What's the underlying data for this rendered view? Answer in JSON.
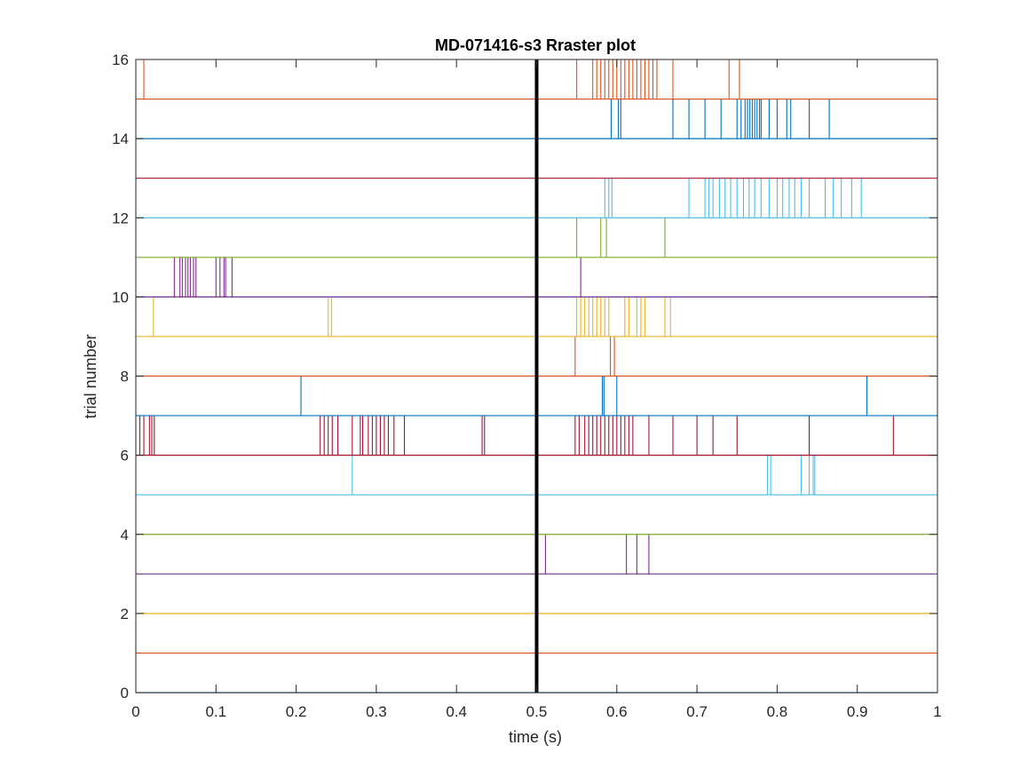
{
  "chart_data": {
    "type": "raster",
    "title": "MD-071416-s3 Rraster plot",
    "xlabel": "time (s)",
    "ylabel": "trial number",
    "xlim": [
      0,
      1
    ],
    "ylim": [
      0,
      16
    ],
    "xticks": [
      0,
      0.1,
      0.2,
      0.3,
      0.4,
      0.5,
      0.6,
      0.7,
      0.8,
      0.9,
      1
    ],
    "yticks": [
      0,
      2,
      4,
      6,
      8,
      10,
      12,
      14,
      16
    ],
    "xtick_labels": [
      "0",
      "0.1",
      "0.2",
      "0.3",
      "0.4",
      "0.5",
      "0.6",
      "0.7",
      "0.8",
      "0.9",
      "1"
    ],
    "ytick_labels": [
      "0",
      "2",
      "4",
      "6",
      "8",
      "10",
      "12",
      "14",
      "16"
    ],
    "grid": false,
    "event_marker": {
      "x": 0.5,
      "color": "#000000"
    },
    "trials": [
      {
        "trial": 1,
        "color": "#0072BD",
        "spikes": []
      },
      {
        "trial": 2,
        "color": "#D95319",
        "spikes": []
      },
      {
        "trial": 3,
        "color": "#EDB120",
        "spikes": []
      },
      {
        "trial": 4,
        "color": "#7E2F8E",
        "spikes": [
          0.511,
          0.612,
          0.625,
          0.64
        ]
      },
      {
        "trial": 5,
        "color": "#77AC30",
        "spikes": []
      },
      {
        "trial": 6,
        "color": "#4DBEEE",
        "spikes": [
          0.27,
          0.788,
          0.792,
          0.83,
          0.84,
          0.845,
          0.847
        ]
      },
      {
        "trial": 7,
        "color": "#A2142F",
        "spikes": [
          0.005,
          0.01,
          0.017,
          0.02,
          0.023,
          0.23,
          0.235,
          0.24,
          0.245,
          0.252,
          0.27,
          0.28,
          0.283,
          0.29,
          0.295,
          0.3,
          0.305,
          0.31,
          0.315,
          0.322,
          0.335,
          0.432,
          0.435,
          0.548,
          0.553,
          0.56,
          0.565,
          0.57,
          0.575,
          0.58,
          0.585,
          0.59,
          0.595,
          0.6,
          0.605,
          0.61,
          0.615,
          0.62,
          0.64,
          0.67,
          0.7,
          0.72,
          0.75,
          0.84,
          0.945
        ]
      },
      {
        "trial": 8,
        "color": "#0072BD",
        "spikes": [
          0.206,
          0.582,
          0.584,
          0.6,
          0.912
        ]
      },
      {
        "trial": 9,
        "color": "#D95319",
        "spikes": [
          0.548,
          0.592,
          0.597
        ]
      },
      {
        "trial": 10,
        "color": "#EDB120",
        "spikes": [
          0.022,
          0.24,
          0.244,
          0.55,
          0.555,
          0.56,
          0.565,
          0.57,
          0.575,
          0.58,
          0.585,
          0.59,
          0.61,
          0.615,
          0.625,
          0.63,
          0.635,
          0.66,
          0.667
        ]
      },
      {
        "trial": 11,
        "color": "#7E2F8E",
        "spikes": [
          0.048,
          0.055,
          0.058,
          0.062,
          0.065,
          0.068,
          0.072,
          0.075,
          0.1,
          0.105,
          0.11,
          0.112,
          0.12,
          0.555
        ]
      },
      {
        "trial": 12,
        "color": "#77AC30",
        "spikes": [
          0.55,
          0.58,
          0.587,
          0.66
        ]
      },
      {
        "trial": 13,
        "color": "#4DBEEE",
        "spikes": [
          0.585,
          0.59,
          0.594,
          0.69,
          0.71,
          0.715,
          0.72,
          0.728,
          0.735,
          0.742,
          0.75,
          0.758,
          0.765,
          0.772,
          0.78,
          0.79,
          0.8,
          0.807,
          0.815,
          0.822,
          0.83,
          0.84,
          0.86,
          0.87,
          0.88,
          0.893,
          0.905
        ]
      },
      {
        "trial": 14,
        "color": "#A2142F",
        "spikes": []
      },
      {
        "trial": 15,
        "color": "#0072BD",
        "spikes": [
          0.593,
          0.602,
          0.605,
          0.67,
          0.69,
          0.71,
          0.73,
          0.75,
          0.755,
          0.76,
          0.763,
          0.766,
          0.769,
          0.772,
          0.775,
          0.778,
          0.78,
          0.79,
          0.8,
          0.812,
          0.817,
          0.84,
          0.865
        ]
      },
      {
        "trial": 16,
        "color": "#D95319",
        "spikes": [
          0.01,
          0.55,
          0.57,
          0.575,
          0.58,
          0.585,
          0.59,
          0.595,
          0.6,
          0.605,
          0.61,
          0.615,
          0.62,
          0.625,
          0.63,
          0.635,
          0.64,
          0.645,
          0.65,
          0.67,
          0.74,
          0.753
        ]
      }
    ]
  }
}
